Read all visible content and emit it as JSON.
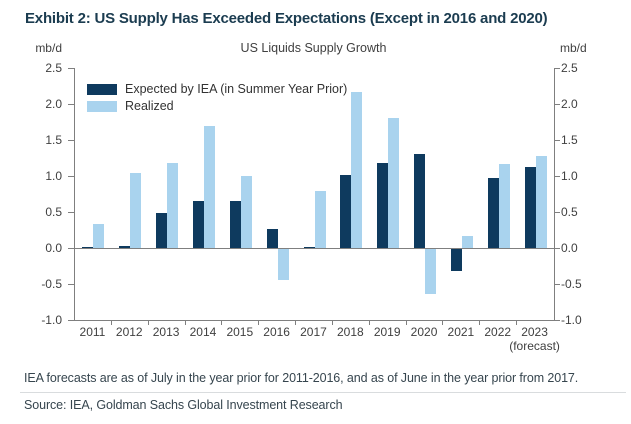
{
  "exhibit": {
    "title": "Exhibit 2: US Supply Has Exceeded Expectations (Except in 2016 and 2020)",
    "footnote": "IEA forecasts are as of July in the year prior for 2011-2016, and as of June in the year prior from 2017.",
    "source": "Source: IEA, Goldman Sachs Global Investment Research"
  },
  "chart_data": {
    "type": "bar",
    "title": "US Liquids Supply Growth",
    "unit_label_left": "mb/d",
    "unit_label_right": "mb/d",
    "categories": [
      "2011",
      "2012",
      "2013",
      "2014",
      "2015",
      "2016",
      "2017",
      "2018",
      "2019",
      "2020",
      "2021",
      "2022",
      "2023"
    ],
    "last_category_note": "(forecast)",
    "series": [
      {
        "name": "Expected by IEA (in Summer Year Prior)",
        "color": "#0E3A5E",
        "values": [
          0.02,
          0.03,
          0.48,
          0.65,
          0.65,
          0.27,
          0.02,
          1.01,
          1.18,
          1.3,
          -0.3,
          0.97,
          1.13
        ]
      },
      {
        "name": "Realized",
        "color": "#A9D3EE",
        "values": [
          0.33,
          1.04,
          1.18,
          1.69,
          1.0,
          -0.43,
          0.79,
          2.17,
          1.81,
          -0.63,
          0.17,
          1.16,
          1.28
        ]
      }
    ],
    "ylim": [
      -1.0,
      2.5
    ],
    "yticks": [
      "2.5",
      "2.0",
      "1.5",
      "1.0",
      "0.5",
      "0.0",
      "-0.5",
      "-1.0"
    ],
    "grid": "zero-line-only",
    "legend_position": "top-left"
  }
}
